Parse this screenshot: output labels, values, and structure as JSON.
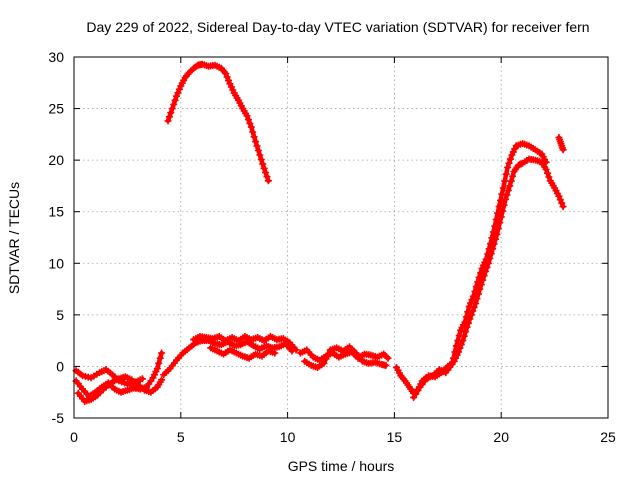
{
  "chart_data": {
    "type": "scatter",
    "title": "Day 229 of 2022, Sidereal Day-to-day VTEC variation (SDTVAR) for receiver fern",
    "xlabel": "GPS time / hours",
    "ylabel": "SDTVAR / TECUs",
    "xlim": [
      0,
      25
    ],
    "ylim": [
      -5,
      30
    ],
    "xticks": [
      0,
      5,
      10,
      15,
      20,
      25
    ],
    "yticks": [
      -5,
      0,
      5,
      10,
      15,
      20,
      25,
      30
    ],
    "grid": true,
    "marker": "plus",
    "color": "#ff0000",
    "series": [
      {
        "name": "night-early",
        "points": [
          [
            0.1,
            -1.4
          ],
          [
            0.4,
            -2.2
          ],
          [
            0.7,
            -2.9
          ],
          [
            1.0,
            -2.5
          ],
          [
            1.3,
            -2.0
          ],
          [
            1.6,
            -1.6
          ],
          [
            1.9,
            -2.2
          ],
          [
            2.2,
            -2.5
          ],
          [
            2.5,
            -2.3
          ],
          [
            2.8,
            -2.1
          ],
          [
            3.1,
            -2.2
          ],
          [
            3.4,
            -2.0
          ],
          [
            3.7,
            -1.1
          ],
          [
            3.9,
            -0.2
          ],
          [
            4.1,
            1.3
          ]
        ]
      },
      {
        "name": "night-early-lower",
        "points": [
          [
            0.2,
            -2.6
          ],
          [
            0.5,
            -3.4
          ],
          [
            0.8,
            -3.2
          ],
          [
            1.1,
            -2.8
          ],
          [
            1.5,
            -2.0
          ],
          [
            1.8,
            -1.5
          ],
          [
            2.1,
            -1.2
          ],
          [
            2.4,
            -1.0
          ],
          [
            2.7,
            -1.3
          ],
          [
            3.0,
            -1.8
          ],
          [
            3.3,
            -2.3
          ],
          [
            3.6,
            -2.5
          ],
          [
            3.9,
            -2.0
          ],
          [
            4.1,
            -1.3
          ]
        ]
      },
      {
        "name": "night-early-upper",
        "points": [
          [
            0.1,
            -0.4
          ],
          [
            0.4,
            -0.9
          ],
          [
            0.8,
            -1.1
          ],
          [
            1.2,
            -0.6
          ],
          [
            1.5,
            -0.3
          ],
          [
            1.8,
            -0.8
          ],
          [
            2.1,
            -1.4
          ],
          [
            2.5,
            -1.7
          ],
          [
            2.9,
            -1.5
          ],
          [
            3.2,
            -1.2
          ]
        ]
      },
      {
        "name": "day-arc",
        "points": [
          [
            4.4,
            23.8
          ],
          [
            4.6,
            25.0
          ],
          [
            4.8,
            26.2
          ],
          [
            5.0,
            27.2
          ],
          [
            5.2,
            28.0
          ],
          [
            5.4,
            28.5
          ],
          [
            5.6,
            28.9
          ],
          [
            5.8,
            29.2
          ],
          [
            6.0,
            29.3
          ],
          [
            6.3,
            29.1
          ],
          [
            6.6,
            29.2
          ],
          [
            6.9,
            28.9
          ],
          [
            7.1,
            28.4
          ],
          [
            7.3,
            27.4
          ],
          [
            7.5,
            26.5
          ],
          [
            7.7,
            25.8
          ],
          [
            7.9,
            25.0
          ],
          [
            8.1,
            24.3
          ],
          [
            8.3,
            23.2
          ],
          [
            8.5,
            21.8
          ],
          [
            8.7,
            20.5
          ],
          [
            8.9,
            19.2
          ],
          [
            9.1,
            18.0
          ]
        ]
      },
      {
        "name": "day-low",
        "points": [
          [
            4.2,
            -0.8
          ],
          [
            4.5,
            -0.2
          ],
          [
            4.8,
            0.6
          ],
          [
            5.1,
            1.3
          ],
          [
            5.4,
            1.8
          ],
          [
            5.7,
            2.3
          ],
          [
            6.0,
            2.5
          ],
          [
            6.3,
            2.5
          ],
          [
            6.6,
            2.2
          ],
          [
            6.9,
            2.1
          ],
          [
            7.2,
            2.4
          ],
          [
            7.5,
            2.0
          ],
          [
            7.8,
            2.1
          ],
          [
            8.1,
            2.4
          ],
          [
            8.4,
            2.0
          ],
          [
            8.7,
            1.7
          ],
          [
            9.0,
            2.0
          ],
          [
            9.3,
            1.8
          ],
          [
            9.6,
            1.9
          ],
          [
            9.9,
            2.2
          ],
          [
            10.2,
            1.5
          ]
        ]
      },
      {
        "name": "day-low-b",
        "points": [
          [
            5.6,
            2.6
          ],
          [
            5.9,
            2.9
          ],
          [
            6.2,
            2.8
          ],
          [
            6.5,
            2.7
          ],
          [
            6.8,
            2.9
          ],
          [
            7.1,
            2.5
          ],
          [
            7.4,
            2.8
          ],
          [
            7.7,
            2.5
          ],
          [
            8.0,
            2.9
          ],
          [
            8.3,
            2.6
          ],
          [
            8.6,
            2.8
          ],
          [
            8.9,
            2.5
          ],
          [
            9.2,
            2.9
          ],
          [
            9.5,
            2.6
          ],
          [
            9.8,
            2.7
          ],
          [
            10.1,
            2.3
          ],
          [
            10.4,
            1.6
          ]
        ]
      },
      {
        "name": "day-low-c",
        "points": [
          [
            6.4,
            1.8
          ],
          [
            6.7,
            1.5
          ],
          [
            7.0,
            1.2
          ],
          [
            7.3,
            1.6
          ],
          [
            7.6,
            1.3
          ],
          [
            7.9,
            1.0
          ],
          [
            8.2,
            0.8
          ],
          [
            8.5,
            1.2
          ],
          [
            8.8,
            1.0
          ],
          [
            9.1,
            1.5
          ],
          [
            9.4,
            1.3
          ]
        ]
      },
      {
        "name": "midday",
        "points": [
          [
            10.6,
            1.3
          ],
          [
            10.9,
            1.6
          ],
          [
            11.2,
            0.9
          ],
          [
            11.5,
            0.6
          ],
          [
            11.8,
            1.0
          ],
          [
            12.1,
            1.3
          ],
          [
            12.4,
            0.9
          ],
          [
            12.7,
            1.2
          ],
          [
            13.0,
            1.4
          ],
          [
            13.3,
            0.8
          ],
          [
            13.6,
            1.2
          ],
          [
            13.9,
            1.1
          ],
          [
            14.2,
            0.9
          ],
          [
            14.5,
            1.2
          ],
          [
            14.7,
            0.8
          ]
        ]
      },
      {
        "name": "midday-b",
        "points": [
          [
            10.8,
            0.5
          ],
          [
            11.1,
            0.1
          ],
          [
            11.4,
            -0.1
          ],
          [
            11.7,
            0.3
          ],
          [
            12.0,
            1.6
          ],
          [
            12.3,
            1.8
          ],
          [
            12.6,
            1.5
          ],
          [
            12.9,
            1.9
          ],
          [
            13.2,
            1.3
          ],
          [
            13.5,
            0.5
          ],
          [
            13.8,
            0.3
          ],
          [
            14.1,
            0.4
          ],
          [
            14.4,
            0.2
          ],
          [
            14.6,
            0.1
          ]
        ]
      },
      {
        "name": "dusk",
        "points": [
          [
            15.1,
            -0.1
          ],
          [
            15.3,
            -0.9
          ],
          [
            15.5,
            -1.4
          ],
          [
            15.7,
            -2.0
          ],
          [
            15.9,
            -2.6
          ],
          [
            16.1,
            -2.3
          ],
          [
            16.3,
            -1.4
          ],
          [
            16.6,
            -0.9
          ],
          [
            16.9,
            -1.0
          ],
          [
            17.2,
            -0.6
          ],
          [
            17.5,
            0.0
          ],
          [
            17.8,
            0.5
          ],
          [
            18.0,
            1.4
          ],
          [
            18.2,
            2.5
          ],
          [
            18.4,
            3.8
          ],
          [
            18.6,
            5.0
          ],
          [
            18.8,
            6.1
          ],
          [
            19.0,
            7.5
          ],
          [
            19.2,
            8.8
          ],
          [
            19.4,
            10.0
          ],
          [
            19.6,
            11.4
          ],
          [
            19.8,
            12.8
          ],
          [
            20.0,
            14.5
          ],
          [
            20.2,
            16.2
          ],
          [
            20.4,
            17.5
          ],
          [
            20.6,
            18.9
          ],
          [
            20.8,
            19.5
          ],
          [
            21.0,
            19.7
          ],
          [
            21.3,
            20.1
          ],
          [
            21.6,
            20.0
          ],
          [
            21.9,
            19.8
          ],
          [
            22.1,
            19.1
          ],
          [
            22.3,
            18.0
          ],
          [
            22.5,
            17.3
          ],
          [
            22.7,
            16.5
          ],
          [
            22.9,
            15.5
          ]
        ]
      },
      {
        "name": "dusk-b",
        "points": [
          [
            15.9,
            -3.0
          ],
          [
            16.2,
            -2.0
          ],
          [
            16.5,
            -1.2
          ],
          [
            16.8,
            -0.9
          ],
          [
            17.1,
            -0.3
          ],
          [
            17.4,
            -0.6
          ],
          [
            17.7,
            0.2
          ],
          [
            17.9,
            2.0
          ],
          [
            18.1,
            3.5
          ],
          [
            18.3,
            4.3
          ],
          [
            18.5,
            5.8
          ],
          [
            18.7,
            6.8
          ],
          [
            18.9,
            8.2
          ],
          [
            19.1,
            9.5
          ],
          [
            19.3,
            10.4
          ],
          [
            19.5,
            11.9
          ],
          [
            19.7,
            13.6
          ],
          [
            19.9,
            15.5
          ],
          [
            20.1,
            17.3
          ],
          [
            20.3,
            19.3
          ],
          [
            20.5,
            20.5
          ],
          [
            20.7,
            21.4
          ],
          [
            21.0,
            21.6
          ],
          [
            21.3,
            21.4
          ],
          [
            21.6,
            21.0
          ],
          [
            21.9,
            20.6
          ],
          [
            22.1,
            19.8
          ]
        ]
      },
      {
        "name": "late",
        "points": [
          [
            22.7,
            22.2
          ],
          [
            22.8,
            21.6
          ],
          [
            22.9,
            21.0
          ]
        ]
      }
    ]
  }
}
